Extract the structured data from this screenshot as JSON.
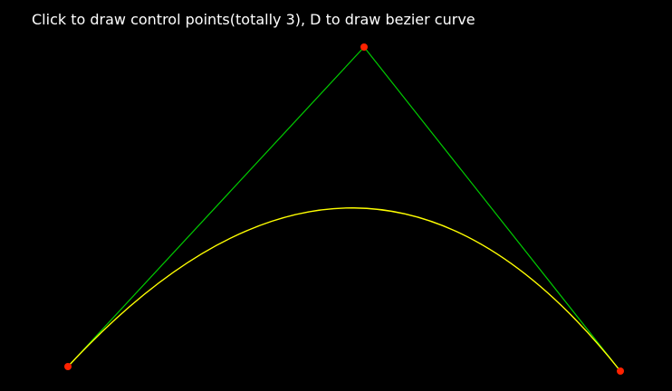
{
  "app": {
    "instruction": "Click to draw control points(totally 3), D to draw bezier curve"
  },
  "scene": {
    "control_point_count": 3,
    "colors": {
      "background": "#000000",
      "control_polygon": "#00cc00",
      "curve": "#ffff00",
      "control_point": "#ff2200",
      "text": "#ffffff"
    }
  }
}
